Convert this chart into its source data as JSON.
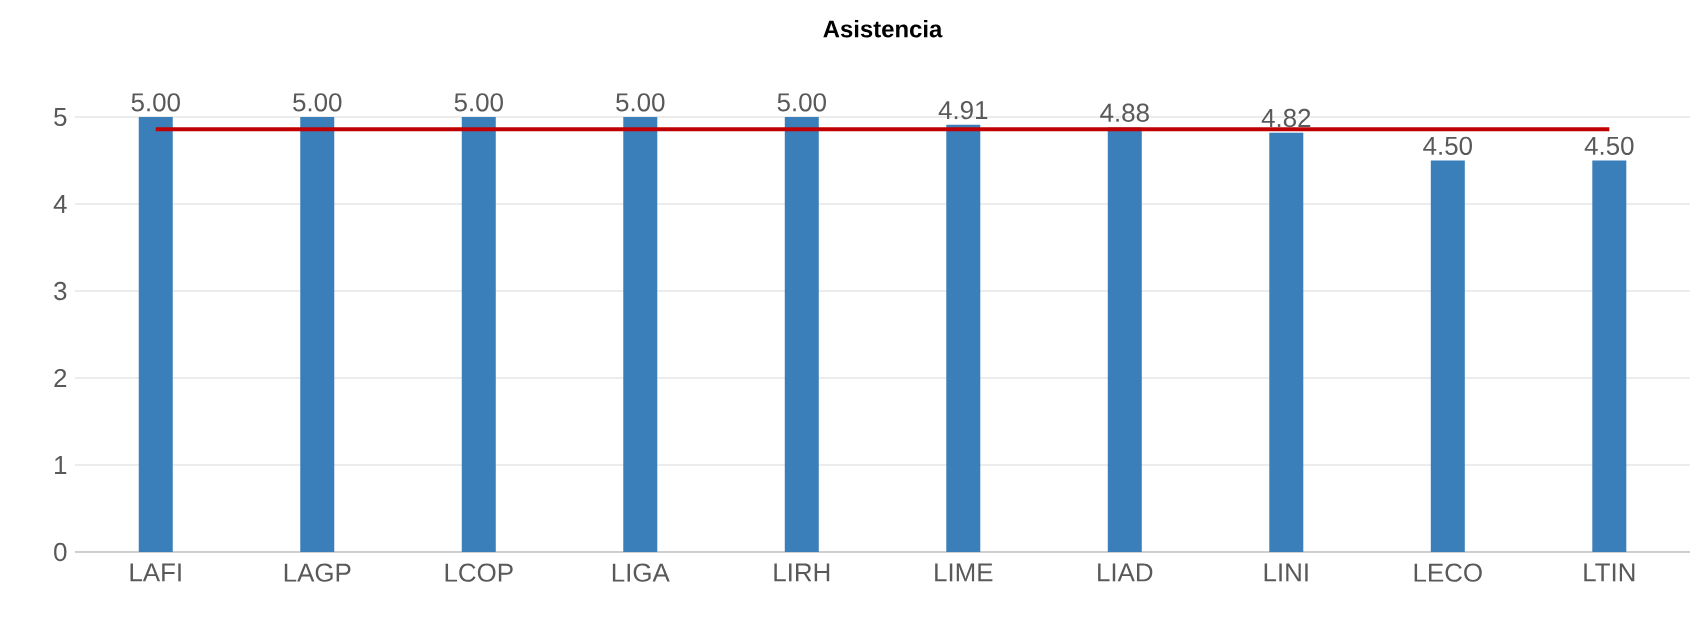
{
  "chart_data": {
    "type": "bar",
    "title": "Asistencia",
    "categories": [
      "LAFI",
      "LAGP",
      "LCOP",
      "LIGA",
      "LIRH",
      "LIME",
      "LIAD",
      "LINI",
      "LECO",
      "LTIN"
    ],
    "values": [
      5.0,
      5.0,
      5.0,
      5.0,
      5.0,
      4.91,
      4.88,
      4.82,
      4.5,
      4.5
    ],
    "value_labels": [
      "5.00",
      "5.00",
      "5.00",
      "5.00",
      "5.00",
      "4.91",
      "4.88",
      "4.82",
      "4.50",
      "4.50"
    ],
    "color": "#3a7fba",
    "ylim": [
      0,
      5
    ],
    "yticks": [
      0,
      1,
      2,
      3,
      4,
      5
    ],
    "grid": "y",
    "ref_lines": [
      {
        "axis": "y",
        "value": 4.86,
        "color": "#c00000",
        "line_style": "solid"
      }
    ]
  }
}
